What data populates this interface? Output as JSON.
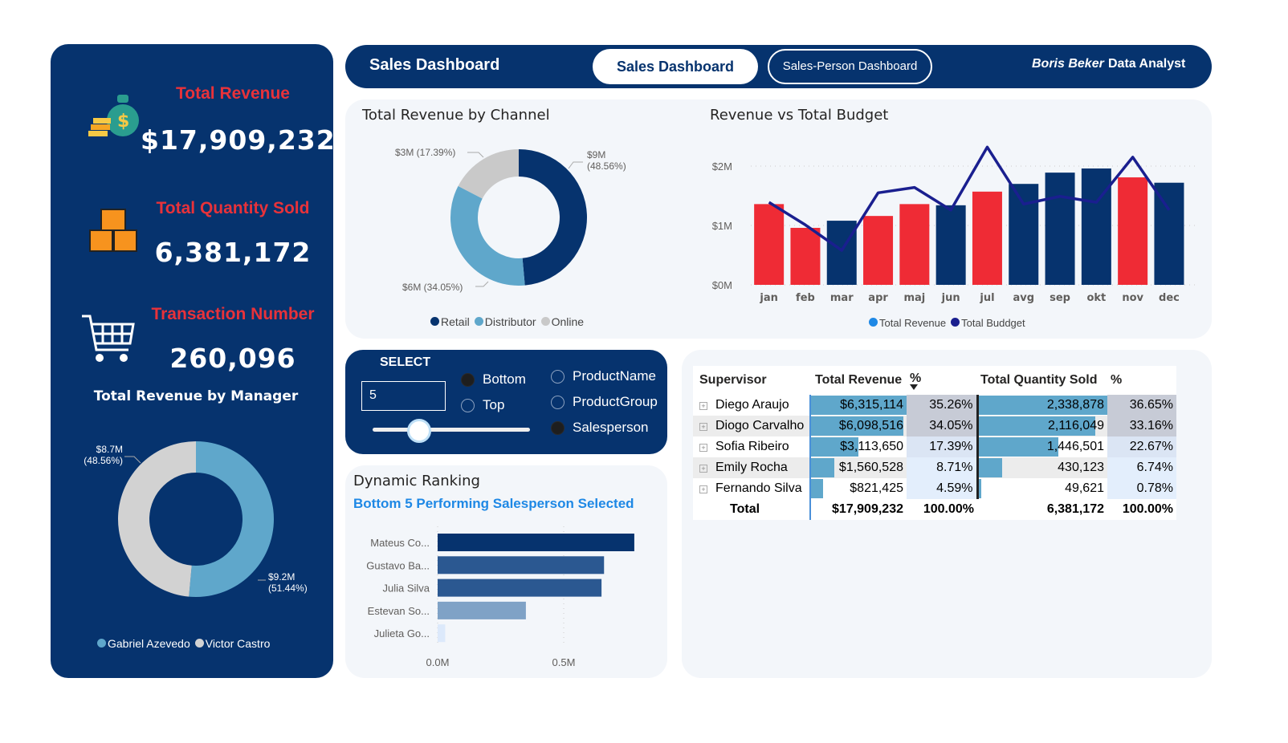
{
  "header": {
    "title": "Sales Dashboard",
    "tabs": [
      {
        "label": "Sales Dashboard",
        "active": true
      },
      {
        "label": "Sales-Person Dashboard",
        "active": false
      }
    ],
    "author": "Boris Beker",
    "role": "Data Analyst"
  },
  "kpis": [
    {
      "title": "Total Revenue",
      "value": "$17,909,232",
      "icon": "money-bag-icon"
    },
    {
      "title": "Total Quantity Sold",
      "value": "6,381,172",
      "icon": "boxes-icon"
    },
    {
      "title": "Transaction Number",
      "value": "260,096",
      "icon": "shopping-cart-icon"
    }
  ],
  "select": {
    "title": "SELECT",
    "value": "5",
    "slider_value": 5,
    "order_options": [
      {
        "label": "Bottom",
        "selected": true
      },
      {
        "label": "Top",
        "selected": false
      }
    ],
    "dimension_options": [
      {
        "label": "ProductName",
        "selected": false
      },
      {
        "label": "ProductGroup",
        "selected": false
      },
      {
        "label": "Salesperson",
        "selected": true
      }
    ]
  },
  "table": {
    "headers": [
      "Supervisor",
      "Total Revenue",
      "%",
      "Total Quantity Sold",
      "%"
    ],
    "rows": [
      {
        "name": "Diego Araujo",
        "revenue": "$6,315,114",
        "rev_pct": "35.26%",
        "qty": "2,338,878",
        "qty_pct": "36.65%",
        "rev_val": 6315114,
        "qty_val": 2338878
      },
      {
        "name": "Diogo Carvalho",
        "revenue": "$6,098,516",
        "rev_pct": "34.05%",
        "qty": "2,116,049",
        "qty_pct": "33.16%",
        "rev_val": 6098516,
        "qty_val": 2116049
      },
      {
        "name": "Sofia Ribeiro",
        "revenue": "$3,113,650",
        "rev_pct": "17.39%",
        "qty": "1,446,501",
        "qty_pct": "22.67%",
        "rev_val": 3113650,
        "qty_val": 1446501
      },
      {
        "name": "Emily Rocha",
        "revenue": "$1,560,528",
        "rev_pct": "8.71%",
        "qty": "430,123",
        "qty_pct": "6.74%",
        "rev_val": 1560528,
        "qty_val": 430123
      },
      {
        "name": "Fernando Silva",
        "revenue": "$821,425",
        "rev_pct": "4.59%",
        "qty": "49,621",
        "qty_pct": "0.78%",
        "rev_val": 821425,
        "qty_val": 49621
      }
    ],
    "total": {
      "name": "Total",
      "revenue": "$17,909,232",
      "rev_pct": "100.00%",
      "qty": "6,381,172",
      "qty_pct": "100.00%"
    }
  },
  "colors": {
    "navy": "#06336e",
    "red": "#ef2b35",
    "light_blue": "#5fa7cb",
    "grey": "#c9c9c9",
    "line": "#1a1f8f",
    "accent": "#1e88e5"
  },
  "chart_data": [
    {
      "type": "pie",
      "title": "Total Revenue by Channel",
      "donut": true,
      "slices": [
        {
          "name": "Retail",
          "value": 9,
          "pct": 48.56,
          "label": "$9M",
          "label2": "(48.56%)",
          "color": "#06336e"
        },
        {
          "name": "Distributor",
          "value": 6,
          "pct": 34.05,
          "label": "$6M (34.05%)",
          "color": "#5fa7cb"
        },
        {
          "name": "Online",
          "value": 3,
          "pct": 17.39,
          "label": "$3M (17.39%)",
          "color": "#c9c9c9"
        }
      ],
      "legend": "bottom"
    },
    {
      "type": "bar",
      "title": "Revenue vs Total Budget",
      "categories": [
        "jan",
        "feb",
        "mar",
        "apr",
        "maj",
        "jun",
        "jul",
        "avg",
        "sep",
        "okt",
        "nov",
        "dec"
      ],
      "series": [
        {
          "name": "Total Revenue",
          "type": "bar",
          "values": [
            1.36,
            0.96,
            1.08,
            1.16,
            1.36,
            1.34,
            1.57,
            1.7,
            1.89,
            1.96,
            1.81,
            1.72
          ]
        },
        {
          "name": "Total Buddget",
          "type": "line",
          "values": [
            1.39,
            1.01,
            0.58,
            1.55,
            1.64,
            1.26,
            2.32,
            1.36,
            1.49,
            1.39,
            2.15,
            1.26
          ]
        }
      ],
      "yticks": [
        "$0M",
        "$1M",
        "$2M"
      ],
      "ylim": [
        0,
        2.4
      ],
      "yunit": "$M",
      "grid": true,
      "legend": "bottom",
      "bar_color_rule": "red when revenue below budget, navy otherwise"
    },
    {
      "type": "bar",
      "orientation": "horizontal",
      "title": "Dynamic Ranking",
      "subtitle": "Bottom 5 Performing Salesperson Selected",
      "categories": [
        "Mateus Co...",
        "Gustavo Ba...",
        "Julia Silva",
        "Estevan So...",
        "Julieta Go..."
      ],
      "values": [
        0.78,
        0.66,
        0.65,
        0.35,
        0.03
      ],
      "xticks": [
        "0.0M",
        "0.5M"
      ],
      "xlim": [
        0,
        0.9
      ],
      "grid": true,
      "colors": [
        "#06336e",
        "#2b5891",
        "#2b5891",
        "#7fa2c6",
        "#dce9fb"
      ]
    },
    {
      "type": "pie",
      "title": "Total Revenue by Manager",
      "donut": true,
      "slices": [
        {
          "name": "Gabriel Azevedo",
          "value": 9.2,
          "pct": 51.44,
          "label": "$9.2M",
          "label2": "(51.44%)",
          "color": "#5fa7cb"
        },
        {
          "name": "Victor Castro",
          "value": 8.7,
          "pct": 48.56,
          "label": "$8.7M",
          "label2": "(48.56%)",
          "color": "#d2d2d2"
        }
      ],
      "legend": "bottom"
    }
  ]
}
